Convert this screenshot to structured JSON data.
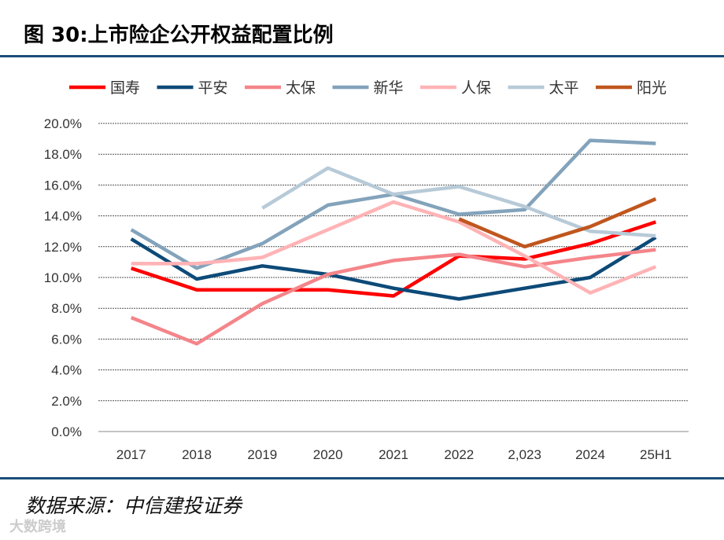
{
  "title": "图 30:上市险企公开权益配置比例",
  "source": "数据来源：中信建投证券",
  "watermark": "大数跨境",
  "chart_data": {
    "type": "line",
    "title": "",
    "xlabel": "",
    "ylabel": "",
    "categories": [
      "2017",
      "2018",
      "2019",
      "2020",
      "2021",
      "2022",
      "2,023",
      "2024",
      "25H1"
    ],
    "ylim": [
      0,
      20
    ],
    "yticks": [
      "0.0%",
      "2.0%",
      "4.0%",
      "6.0%",
      "8.0%",
      "10.0%",
      "12.0%",
      "14.0%",
      "16.0%",
      "18.0%",
      "20.0%"
    ],
    "grid": true,
    "legend": "top",
    "series": [
      {
        "name": "国寿",
        "color": "#ff0000",
        "values": [
          10.6,
          9.2,
          9.2,
          9.2,
          8.8,
          11.4,
          11.2,
          12.2,
          13.6
        ]
      },
      {
        "name": "平安",
        "color": "#0d4a78",
        "values": [
          12.5,
          9.9,
          10.75,
          10.2,
          9.3,
          8.6,
          9.3,
          10.0,
          12.6
        ]
      },
      {
        "name": "太保",
        "color": "#f4858a",
        "values": [
          7.4,
          5.7,
          8.3,
          10.2,
          11.1,
          11.5,
          10.7,
          11.3,
          11.8
        ]
      },
      {
        "name": "新华",
        "color": "#83a3bb",
        "values": [
          13.1,
          10.6,
          12.2,
          14.7,
          15.4,
          14.1,
          14.4,
          18.9,
          18.7
        ]
      },
      {
        "name": "人保",
        "color": "#ffb3b5",
        "values": [
          10.9,
          10.9,
          11.3,
          13.1,
          14.9,
          13.6,
          11.4,
          9.0,
          10.7
        ]
      },
      {
        "name": "太平",
        "color": "#b7cad8",
        "values": [
          null,
          null,
          14.5,
          17.1,
          15.4,
          15.9,
          14.6,
          13.0,
          12.7
        ]
      },
      {
        "name": "阳光",
        "color": "#c0561e",
        "values": [
          null,
          null,
          null,
          null,
          null,
          13.8,
          12.0,
          13.3,
          15.1
        ]
      }
    ]
  }
}
